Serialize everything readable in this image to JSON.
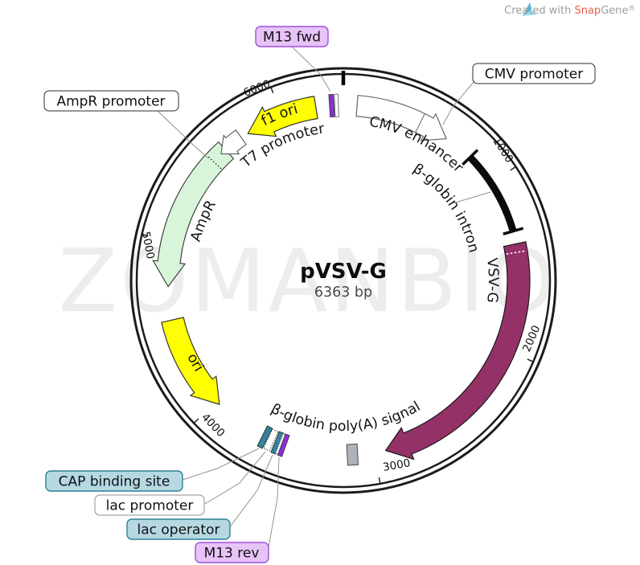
{
  "credit": {
    "prefix": "Created with ",
    "brand1": "Snap",
    "brand2": "Gene",
    "reg": "®"
  },
  "watermark": "ZOMANBIO",
  "plasmid": {
    "name": "pVSV-G",
    "size": "6363 bp"
  },
  "ticks": [
    "1000",
    "2000",
    "3000",
    "4000",
    "5000",
    "6000"
  ],
  "features": {
    "cmv_promoter": {
      "label": "CMV promoter"
    },
    "cmv_enhancer": {
      "label": "CMV enhancer"
    },
    "beta_globin_intron": {
      "label": "β-globin intron"
    },
    "vsv_g": {
      "label": "VSV-G"
    },
    "beta_globin_polya": {
      "label": "β-globin poly(A) signal"
    },
    "m13_fwd": {
      "label": "M13 fwd"
    },
    "m13_rev": {
      "label": "M13 rev"
    },
    "lac_operator": {
      "label": "lac operator"
    },
    "lac_promoter": {
      "label": "lac promoter"
    },
    "cap_binding_site": {
      "label": "CAP binding site"
    },
    "ori": {
      "label": "ori"
    },
    "ampr": {
      "label": "AmpR"
    },
    "ampr_promoter": {
      "label": "AmpR promoter"
    },
    "t7_promoter": {
      "label": "T7 promoter"
    },
    "f1_ori": {
      "label": "f1 ori"
    }
  },
  "colors": {
    "ring": "#1b1b1b",
    "vsv_g": "#943167",
    "yellow": "#ffff00",
    "pale_green": "#d8f4d9",
    "teal_marker": "#31849c",
    "purple_marker": "#8c2fd6",
    "gray_marker": "#adb3b8",
    "intron_black": "#0b0b0b",
    "white_feature": "#ffffff",
    "tag_purple_fill": "#e7c3f7",
    "tag_purple_border": "#a050d8",
    "tag_teal_fill": "#b5d8e2",
    "tag_teal_border": "#2f7f96",
    "tag_white_fill": "#ffffff",
    "tag_dark_border": "#2b2b2b",
    "tag_gray_border": "#909090",
    "brand_red": "#e8604c",
    "credit_gray": "#9e9e9e",
    "logo_blue": "#45b7e6",
    "logo_blue_light": "#9edcf4",
    "watermark_gray": "#ededed"
  }
}
